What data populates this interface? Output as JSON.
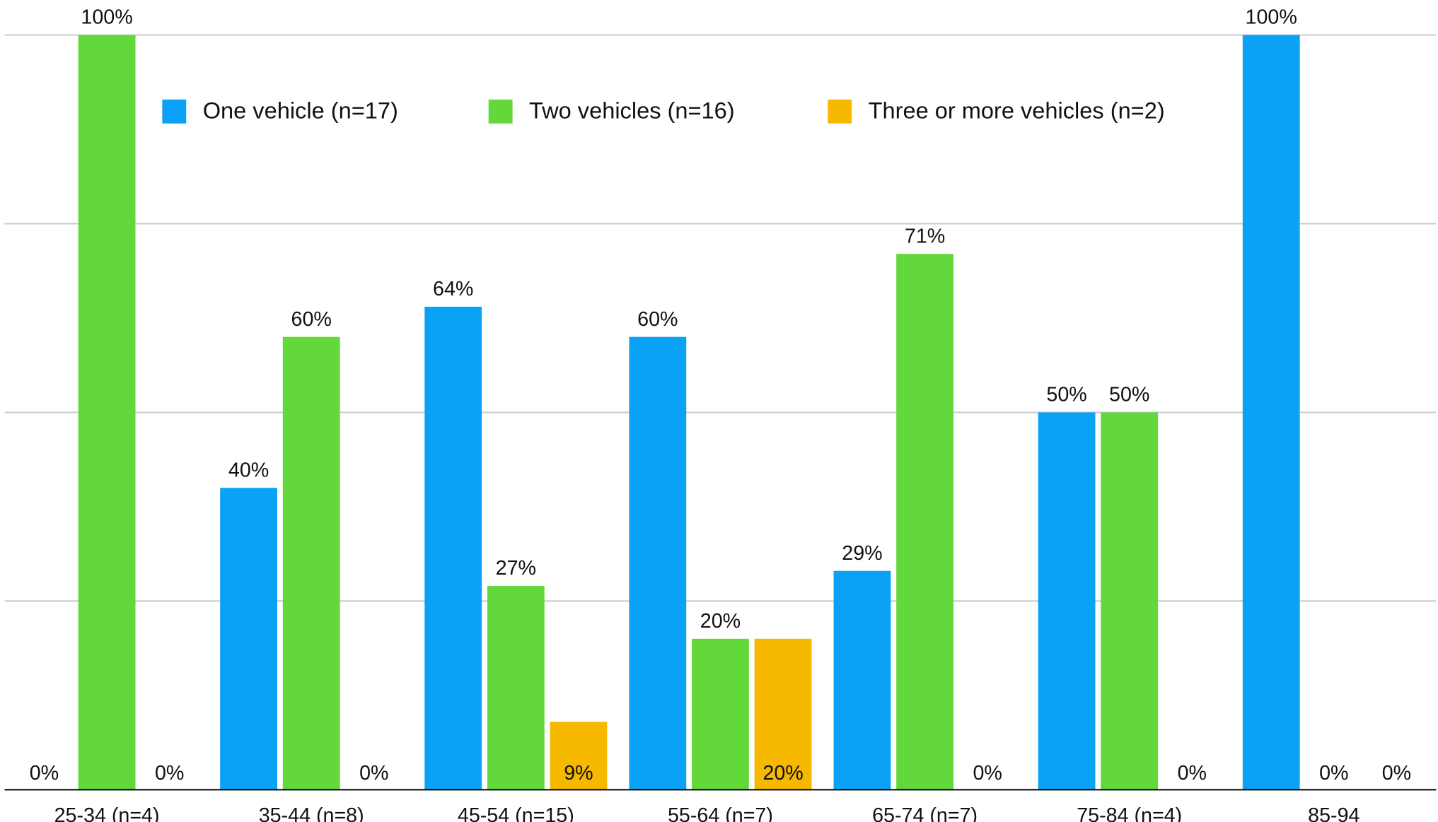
{
  "chart_data": {
    "type": "bar",
    "categories": [
      "25-34 (n=4)",
      "35-44 (n=8)",
      "45-54 (n=15)",
      "55-64 (n=7)",
      "65-74 (n=7)",
      "75-84 (n=4)",
      "85-94"
    ],
    "series": [
      {
        "name": "One vehicle (n=17)",
        "color": "#0aa2f5",
        "values": [
          0,
          40,
          64,
          60,
          29,
          50,
          100
        ],
        "value_labels": [
          "0%",
          "40%",
          "64%",
          "60%",
          "29%",
          "50%",
          "100%"
        ]
      },
      {
        "name": "Two vehicles (n=16)",
        "color": "#62d83b",
        "values": [
          100,
          60,
          27,
          20,
          71,
          50,
          0
        ],
        "value_labels": [
          "100%",
          "60%",
          "27%",
          "20%",
          "71%",
          "50%",
          "0%"
        ]
      },
      {
        "name": "Three or more vehicles (n=2)",
        "color": "#f6b900",
        "values": [
          0,
          0,
          9,
          20,
          0,
          0,
          0
        ],
        "value_labels": [
          "0%",
          "0%",
          "9%",
          "20%",
          "0%",
          "0%",
          "0%"
        ]
      }
    ],
    "ylim": [
      0,
      100
    ],
    "yticks": [
      0,
      25,
      50,
      75,
      100
    ],
    "grid": true,
    "legend": "top"
  }
}
